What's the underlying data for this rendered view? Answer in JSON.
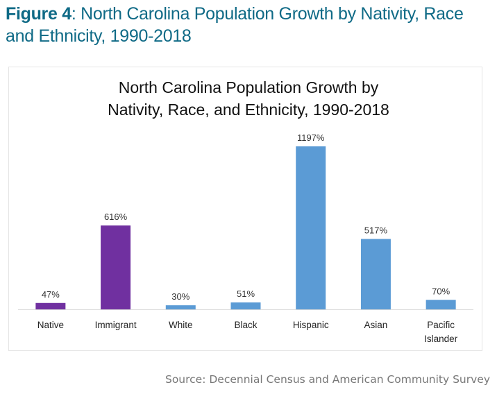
{
  "figure": {
    "label": "Figure 4",
    "title_rest": ": North Carolina Population Growth by Nativity, Race",
    "title_line2": "and Ethnicity, 1990-2018"
  },
  "source": "Source: Decennial Census and American Community Survey",
  "colors": {
    "nativity": "#7030a0",
    "race": "#5b9bd5",
    "title": "#0f6a86"
  },
  "chart_data": {
    "type": "bar",
    "title_line1": "North Carolina Population Growth by",
    "title_line2": "Nativity, Race, and Ethnicity, 1990-2018",
    "categories": [
      "Native",
      "Immigrant",
      "White",
      "Black",
      "Hispanic",
      "Asian",
      "Pacific Islander"
    ],
    "category_lines": [
      [
        "Native"
      ],
      [
        "Immigrant"
      ],
      [
        "White"
      ],
      [
        "Black"
      ],
      [
        "Hispanic"
      ],
      [
        "Asian"
      ],
      [
        "Pacific",
        "Islander"
      ]
    ],
    "values": [
      47,
      616,
      30,
      51,
      1197,
      517,
      70
    ],
    "labels": [
      "47%",
      "616%",
      "30%",
      "51%",
      "1197%",
      "517%",
      "70%"
    ],
    "groups": [
      "nativity",
      "nativity",
      "race",
      "race",
      "race",
      "race",
      "race"
    ],
    "xlabel": "",
    "ylabel": "",
    "ylim": [
      0,
      1197
    ],
    "grid": false,
    "legend": "none"
  }
}
